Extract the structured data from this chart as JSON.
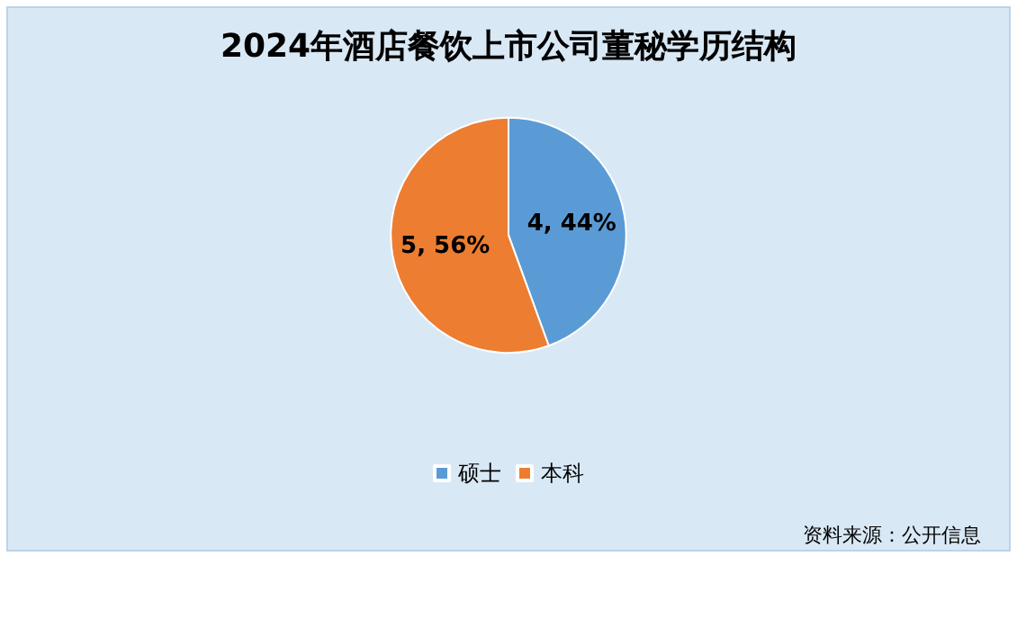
{
  "chart_data": {
    "type": "pie",
    "title": "2024年酒店餐饮上市公司董秘学历结构",
    "categories": [
      "硕士",
      "本科"
    ],
    "values": [
      4,
      5
    ],
    "colors": [
      "#5b9bd5",
      "#ed7d31"
    ],
    "value_labels": [
      "4, 44%",
      "5, 56%"
    ],
    "legend": "bottom",
    "annotations": [
      "资料来源：公开信息"
    ]
  }
}
